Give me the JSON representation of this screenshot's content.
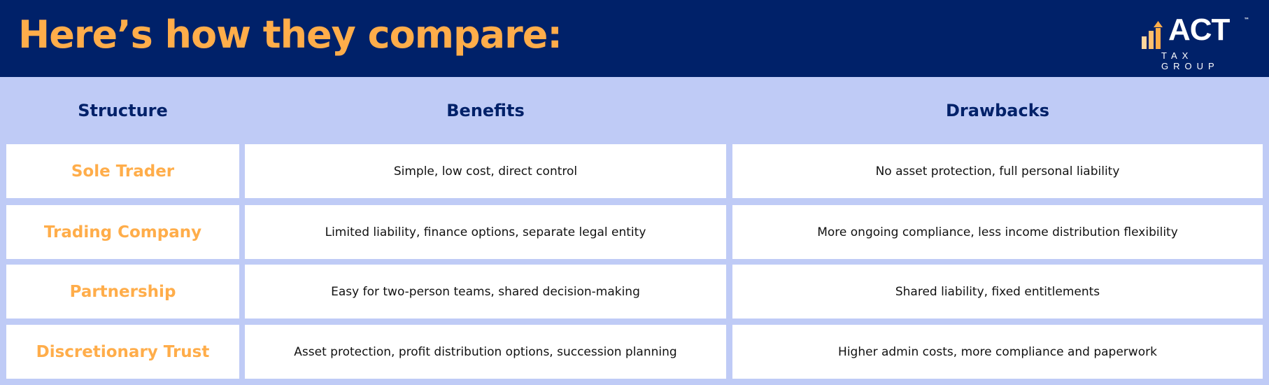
{
  "title": "Here’s how they compare:",
  "logo": {
    "name": "ACT",
    "tagline": "TAX GROUP",
    "tm": "™"
  },
  "colors": {
    "navy": "#002169",
    "orange": "#ffad4a",
    "light_blue": "#bfcbf6"
  },
  "table": {
    "headers": [
      "Structure",
      "Benefits",
      "Drawbacks"
    ],
    "rows": [
      [
        "Sole Trader",
        "Simple, low cost, direct control",
        "No asset protection, full personal liability"
      ],
      [
        "Trading Company",
        "Limited liability, finance options, separate legal entity",
        "More ongoing compliance, less income distribution flexibility"
      ],
      [
        "Partnership",
        "Easy for two-person teams, shared decision-making",
        "Shared liability, fixed entitlements"
      ],
      [
        "Discretionary Trust",
        "Asset protection, profit distribution options, succession planning",
        "Higher admin costs, more compliance and paperwork"
      ]
    ]
  }
}
